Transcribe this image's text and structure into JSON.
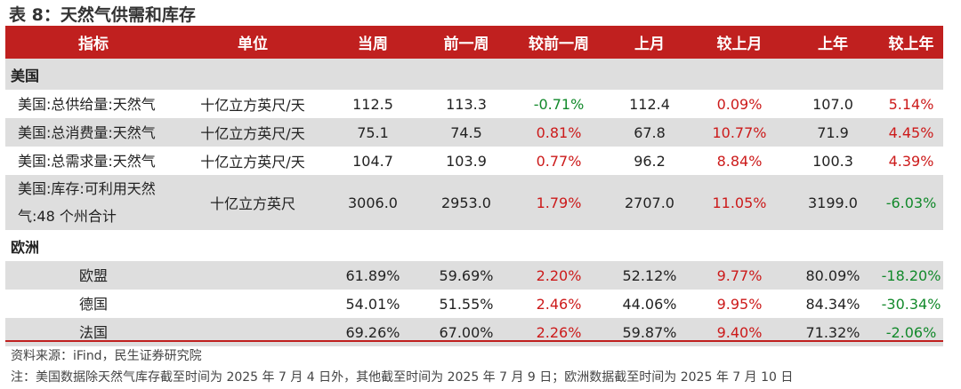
{
  "title": "表 8：天然气供需和库存",
  "headers": [
    "指标",
    "单位",
    "当周",
    "前一周",
    "较前一周",
    "上月",
    "较上月",
    "上年",
    "较上年"
  ],
  "sections": [
    {
      "label": "美国",
      "rows": [
        {
          "name": "美国:总供给量:天然气",
          "unit": "十亿立方英尺/天",
          "cur": "112.5",
          "prev": "113.3",
          "wow": "-0.71%",
          "wow_sign": "neg",
          "month": "112.4",
          "mom": "0.09%",
          "mom_sign": "pos",
          "year": "107.0",
          "yoy": "5.14%",
          "yoy_sign": "pos"
        },
        {
          "name": "美国:总消费量:天然气",
          "unit": "十亿立方英尺/天",
          "cur": "75.1",
          "prev": "74.5",
          "wow": "0.81%",
          "wow_sign": "pos",
          "month": "67.8",
          "mom": "10.77%",
          "mom_sign": "pos",
          "year": "71.9",
          "yoy": "4.45%",
          "yoy_sign": "pos"
        },
        {
          "name": "美国:总需求量:天然气",
          "unit": "十亿立方英尺/天",
          "cur": "104.7",
          "prev": "103.9",
          "wow": "0.77%",
          "wow_sign": "pos",
          "month": "96.2",
          "mom": "8.84%",
          "mom_sign": "pos",
          "year": "100.3",
          "yoy": "4.39%",
          "yoy_sign": "pos"
        },
        {
          "name": "美国:库存:可利用天然气:48 个州合计",
          "name_line1": "美国:库存:可利用天然",
          "name_line2": "气:48 个州合计",
          "unit": "十亿立方英尺",
          "cur": "3006.0",
          "prev": "2953.0",
          "wow": "1.79%",
          "wow_sign": "pos",
          "month": "2707.0",
          "mom": "11.05%",
          "mom_sign": "pos",
          "year": "3199.0",
          "yoy": "-6.03%",
          "yoy_sign": "neg"
        }
      ]
    },
    {
      "label": "欧洲",
      "rows": [
        {
          "name": "欧盟",
          "unit": "",
          "cur": "61.89%",
          "prev": "59.69%",
          "wow": "2.20%",
          "wow_sign": "pos",
          "month": "52.12%",
          "mom": "9.77%",
          "mom_sign": "pos",
          "year": "80.09%",
          "yoy": "-18.20%",
          "yoy_sign": "neg"
        },
        {
          "name": "德国",
          "unit": "",
          "cur": "54.01%",
          "prev": "51.55%",
          "wow": "2.46%",
          "wow_sign": "pos",
          "month": "44.06%",
          "mom": "9.95%",
          "mom_sign": "pos",
          "year": "84.34%",
          "yoy": "-30.34%",
          "yoy_sign": "neg"
        },
        {
          "name": "法国",
          "unit": "",
          "cur": "69.26%",
          "prev": "67.00%",
          "wow": "2.26%",
          "wow_sign": "pos",
          "month": "59.87%",
          "mom": "9.40%",
          "mom_sign": "pos",
          "year": "71.32%",
          "yoy": "-2.06%",
          "yoy_sign": "neg"
        }
      ]
    }
  ],
  "source": "资料来源：iFind，民生证券研究院",
  "note": "注：美国数据除天然气库存截至时间为 2025 年 7 月 4 日外，其他截至时间为 2025 年 7 月 9 日；欧洲数据截至时间为 2025 年 7 月 10 日",
  "colors": {
    "header_bg": "#c0201f",
    "positive": "#cc1a1a",
    "negative": "#12892b",
    "row_alt": "#dedede"
  }
}
